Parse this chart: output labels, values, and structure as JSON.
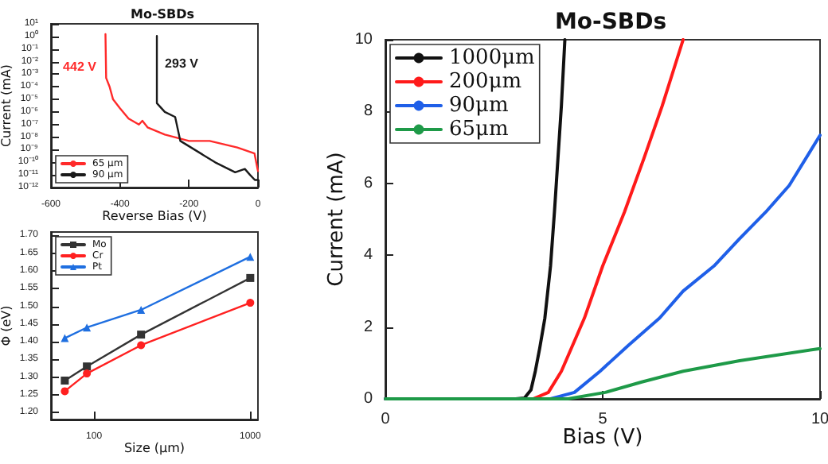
{
  "chart_data": [
    {
      "type": "line",
      "title": "Mo-SBDs",
      "xlabel": "Reverse Bias (V)",
      "ylabel": "Current (mA)",
      "log": "y",
      "xlim": [
        -600,
        0
      ],
      "xticks": [
        -600,
        -400,
        -200,
        0
      ],
      "ylim": [
        1e-12,
        10
      ],
      "yticks": [
        {
          "value": 10,
          "label": "10¹"
        },
        {
          "value": 1,
          "label": "10⁰"
        },
        {
          "value": 0.1,
          "label": "10⁻¹"
        },
        {
          "value": 0.01,
          "label": "10⁻²"
        },
        {
          "value": 0.001,
          "label": "10⁻³"
        },
        {
          "value": 0.0001,
          "label": "10⁻⁴"
        },
        {
          "value": 1e-05,
          "label": "10⁻⁵"
        },
        {
          "value": 1e-06,
          "label": "10⁻⁶"
        },
        {
          "value": 1e-07,
          "label": "10⁻⁷"
        },
        {
          "value": 1e-08,
          "label": "10⁻⁸"
        },
        {
          "value": 1e-09,
          "label": "10⁻⁹"
        },
        {
          "value": 1e-10,
          "label": "10⁻¹⁰"
        },
        {
          "value": 1e-11,
          "label": "10⁻¹¹"
        },
        {
          "value": 1e-12,
          "label": "10⁻¹²"
        }
      ],
      "grid": false,
      "legend": "bottom left",
      "marker": "none",
      "line_style": "solid",
      "annotations": [
        "442 V",
        "293 V"
      ],
      "series": [
        {
          "name": "65 μm",
          "color": "#ff2a2a",
          "x": [
            -442,
            -440,
            -430,
            -420,
            -400,
            -375,
            -345,
            -335,
            -320,
            -270,
            -200,
            -140,
            -60,
            -10,
            0
          ],
          "values": [
            1.5,
            0.0005,
            0.0001,
            1e-05,
            2e-06,
            3e-07,
            1e-07,
            2e-07,
            6e-08,
            1.6e-08,
            5e-09,
            5e-09,
            1.5e-09,
            5e-10,
            2e-11
          ]
        },
        {
          "name": "90 μm",
          "color": "#1a1a1a",
          "x": [
            -293,
            -293,
            -270,
            -240,
            -225,
            -124,
            -66,
            -38,
            -23,
            -9,
            0
          ],
          "values": [
            1.1,
            5e-06,
            1e-06,
            4e-07,
            5e-09,
            1e-10,
            1.6e-11,
            3e-11,
            1e-11,
            4e-12,
            4e-12
          ]
        }
      ]
    },
    {
      "type": "line",
      "xlabel": "Size (μm)",
      "ylabel": "Φ (eV)",
      "log": "x",
      "xlim": [
        53,
        1120
      ],
      "xticks": [
        100,
        1000
      ],
      "ylim": [
        1.18,
        1.71
      ],
      "yticks": [
        {
          "value": 1.2,
          "label": "1.20"
        },
        {
          "value": 1.25,
          "label": "1.25"
        },
        {
          "value": 1.3,
          "label": "1.30"
        },
        {
          "value": 1.35,
          "label": "1.35"
        },
        {
          "value": 1.4,
          "label": "1.40"
        },
        {
          "value": 1.45,
          "label": "1.45"
        },
        {
          "value": 1.5,
          "label": "1.50"
        },
        {
          "value": 1.55,
          "label": "1.55"
        },
        {
          "value": 1.6,
          "label": "1.60"
        },
        {
          "value": 1.65,
          "label": "1.65"
        },
        {
          "value": 1.7,
          "label": "1.70"
        }
      ],
      "grid": false,
      "legend": "top left",
      "line_style": "solid",
      "series": [
        {
          "name": "Mo",
          "color": "#333333",
          "marker": "square",
          "x": [
            65,
            90,
            200,
            1000
          ],
          "values": [
            1.29,
            1.33,
            1.42,
            1.58
          ]
        },
        {
          "name": "Cr",
          "color": "#ff2020",
          "marker": "circle",
          "x": [
            65,
            90,
            200,
            1000
          ],
          "values": [
            1.26,
            1.31,
            1.39,
            1.51
          ]
        },
        {
          "name": "Pt",
          "color": "#1f6fe0",
          "marker": "triangle",
          "x": [
            65,
            90,
            200,
            1000
          ],
          "values": [
            1.41,
            1.44,
            1.49,
            1.64
          ]
        }
      ]
    },
    {
      "type": "line",
      "title": "Mo-SBDs",
      "xlabel": "Bias (V)",
      "ylabel": "Current (mA)",
      "xlim": [
        0,
        10
      ],
      "xticks": [
        0,
        5,
        10
      ],
      "ylim": [
        0,
        10
      ],
      "yticks": [
        0,
        2,
        4,
        6,
        8,
        10
      ],
      "grid": false,
      "legend": "top left",
      "marker": "none",
      "line_style": "solid",
      "series": [
        {
          "name": "1000μm",
          "color": "#111111",
          "x": [
            0,
            3.0,
            3.2,
            3.35,
            3.45,
            3.55,
            3.67,
            3.8,
            3.89,
            4.05,
            4.13
          ],
          "values": [
            0,
            0,
            0.02,
            0.25,
            0.77,
            1.4,
            2.25,
            3.7,
            5.2,
            8.16,
            10
          ]
        },
        {
          "name": "200μm",
          "color": "#ff1a1a",
          "x": [
            0,
            3.4,
            3.75,
            4.05,
            4.58,
            5.0,
            5.5,
            5.95,
            6.37,
            6.85
          ],
          "values": [
            0,
            0,
            0.18,
            0.77,
            2.25,
            3.7,
            5.2,
            6.7,
            8.16,
            10
          ]
        },
        {
          "name": "90μm",
          "color": "#1f5fe8",
          "x": [
            0,
            3.8,
            4.35,
            4.94,
            5.6,
            6.31,
            6.85,
            7.56,
            8.15,
            8.75,
            9.29,
            10
          ],
          "values": [
            0,
            0,
            0.18,
            0.77,
            1.5,
            2.25,
            3.0,
            3.7,
            4.46,
            5.2,
            5.94,
            7.34
          ]
        },
        {
          "name": "65μm",
          "color": "#1e9a48",
          "x": [
            0,
            4.2,
            5.06,
            5.9,
            6.85,
            8.15,
            10
          ],
          "values": [
            0,
            0,
            0.18,
            0.47,
            0.77,
            1.06,
            1.4
          ]
        }
      ]
    }
  ]
}
